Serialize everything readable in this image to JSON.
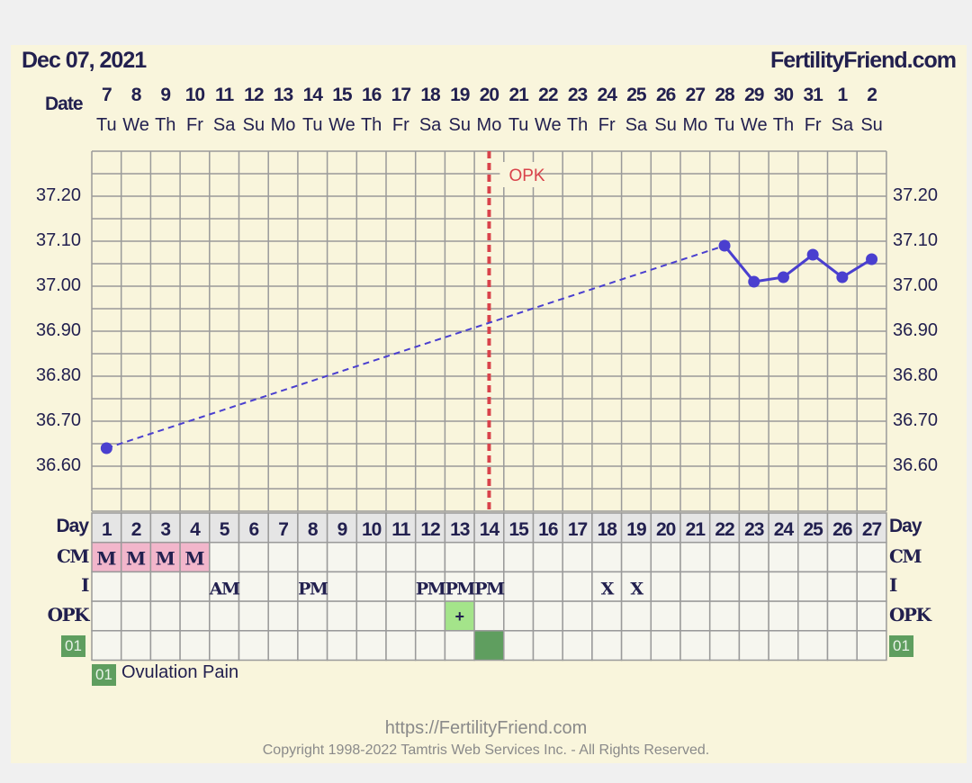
{
  "header": {
    "date": "Dec 07, 2021",
    "site": "FertilityFriend.com",
    "date_label": "Date"
  },
  "dates": [
    "7",
    "8",
    "9",
    "10",
    "11",
    "12",
    "13",
    "14",
    "15",
    "16",
    "17",
    "18",
    "19",
    "20",
    "21",
    "22",
    "23",
    "24",
    "25",
    "26",
    "27",
    "28",
    "29",
    "30",
    "31",
    "1",
    "2"
  ],
  "weekdays": [
    "Tu",
    "We",
    "Th",
    "Fr",
    "Sa",
    "Su",
    "Mo",
    "Tu",
    "We",
    "Th",
    "Fr",
    "Sa",
    "Su",
    "Mo",
    "Tu",
    "We",
    "Th",
    "Fr",
    "Sa",
    "Su",
    "Mo",
    "Tu",
    "We",
    "Th",
    "Fr",
    "Sa",
    "Su"
  ],
  "rows": {
    "day": "Day",
    "cm": "CM",
    "i": "I",
    "opk": "OPK",
    "custom": "01"
  },
  "cm": [
    "M",
    "M",
    "M",
    "M",
    "",
    "",
    "",
    "",
    "",
    "",
    "",
    "",
    "",
    "",
    "",
    "",
    "",
    "",
    "",
    "",
    "",
    "",
    "",
    "",
    "",
    "",
    ""
  ],
  "intercourse": [
    "",
    "",
    "",
    "",
    "AM",
    "",
    "",
    "PM",
    "",
    "",
    "",
    "PM",
    "PM",
    "PM",
    "",
    "",
    "",
    "X",
    "X",
    "",
    "",
    "",
    "",
    "",
    "",
    "",
    ""
  ],
  "opk": {
    "day": 13,
    "value": "+"
  },
  "custom_marker": {
    "day": 14
  },
  "legend": {
    "code": "01",
    "label": "Ovulation Pain"
  },
  "colors": {
    "line": "#4a3fcf",
    "ovulation": "#d9434b",
    "cm": "#f2b6cb",
    "opk_pos": "#a4e48a",
    "custom": "#5f9e5f"
  },
  "chart_data": {
    "type": "line",
    "ylim": [
      36.5,
      37.3
    ],
    "yticks": [
      "37.20",
      "37.10",
      "37.00",
      "36.90",
      "36.80",
      "36.70",
      "36.60"
    ],
    "ytick_values": [
      37.2,
      37.1,
      37.0,
      36.9,
      36.8,
      36.7,
      36.6
    ],
    "days": [
      1,
      2,
      3,
      4,
      5,
      6,
      7,
      8,
      9,
      10,
      11,
      12,
      13,
      14,
      15,
      16,
      17,
      18,
      19,
      20,
      21,
      22,
      23,
      24,
      25,
      26,
      27
    ],
    "points": [
      {
        "day": 1,
        "temp": 36.64
      },
      {
        "day": 22,
        "temp": 37.09
      },
      {
        "day": 23,
        "temp": 37.01
      },
      {
        "day": 24,
        "temp": 37.02
      },
      {
        "day": 25,
        "temp": 37.07
      },
      {
        "day": 26,
        "temp": 37.02
      },
      {
        "day": 27,
        "temp": 37.06
      }
    ],
    "dashed_segment": [
      1,
      22
    ],
    "ovulation_line": {
      "day": 14,
      "label": "OPK"
    }
  },
  "footer": {
    "url": "https://FertilityFriend.com",
    "copyright": "Copyright 1998-2022 Tamtris Web Services Inc. - All Rights Reserved."
  }
}
